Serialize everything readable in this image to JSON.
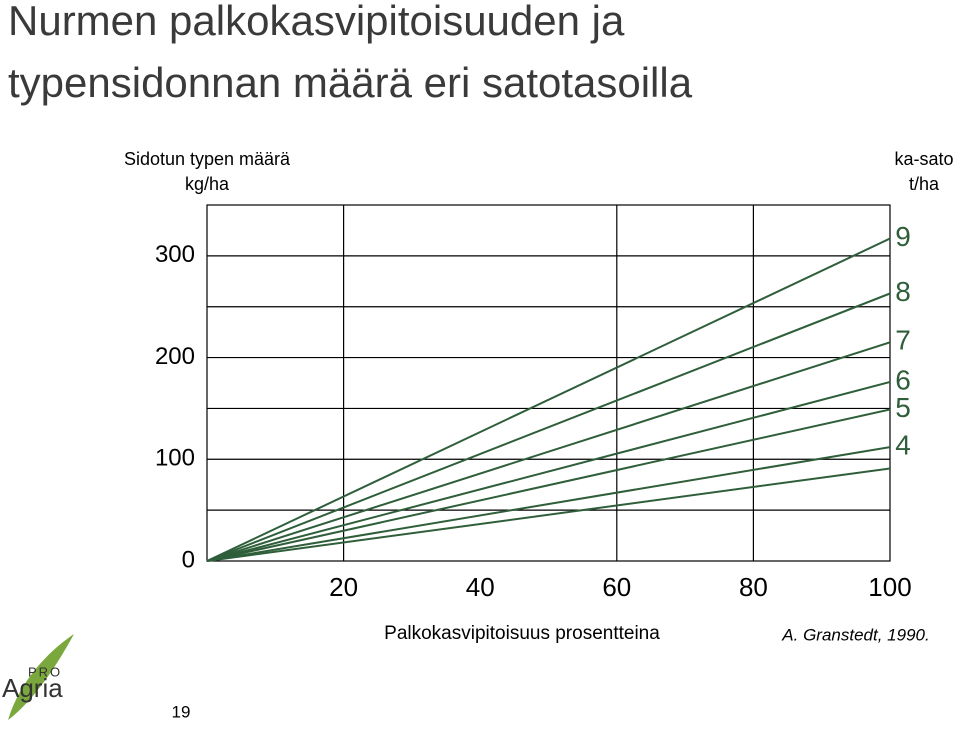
{
  "chart_data": {
    "type": "line",
    "title": [
      "Nurmen palkokasvipitoisuuden ja",
      "typensidonnan määrä eri satotasoilla"
    ],
    "y_label": [
      "Sidotun typen määrä",
      "kg/ha"
    ],
    "y2_label": [
      "ka-sato",
      "t/ha"
    ],
    "x_label": "Palkokasvipitoisuus prosentteina",
    "source": "A. Granstedt, 1990.",
    "x": [
      0,
      100
    ],
    "series": [
      {
        "name": "9",
        "color": "#2f5f3a",
        "values": [
          0,
          317
        ]
      },
      {
        "name": "8",
        "color": "#2f5f3a",
        "values": [
          0,
          263
        ]
      },
      {
        "name": "7",
        "color": "#2f5f3a",
        "values": [
          0,
          215
        ]
      },
      {
        "name": "6",
        "color": "#2f5f3a",
        "values": [
          0,
          176
        ]
      },
      {
        "name": "5",
        "color": "#2f5f3a",
        "values": [
          0,
          149
        ]
      },
      {
        "name": "4",
        "color": "#2f5f3a",
        "values": [
          0,
          112
        ]
      },
      {
        "name": null,
        "color": "#2f5f3a",
        "values": [
          0,
          91
        ]
      }
    ],
    "xlim": [
      0,
      100
    ],
    "xticks": [
      20,
      40,
      60,
      80,
      100
    ],
    "xgrid": [
      20,
      60,
      80
    ],
    "ylim": [
      0,
      350
    ],
    "yticks": [
      0,
      100,
      200,
      300
    ],
    "ygrid": [
      50,
      100,
      150,
      200,
      250,
      300
    ],
    "grid": true
  },
  "footer": {
    "page_number": "19",
    "logo_top": "PRO",
    "logo_bottom": "Agria"
  }
}
